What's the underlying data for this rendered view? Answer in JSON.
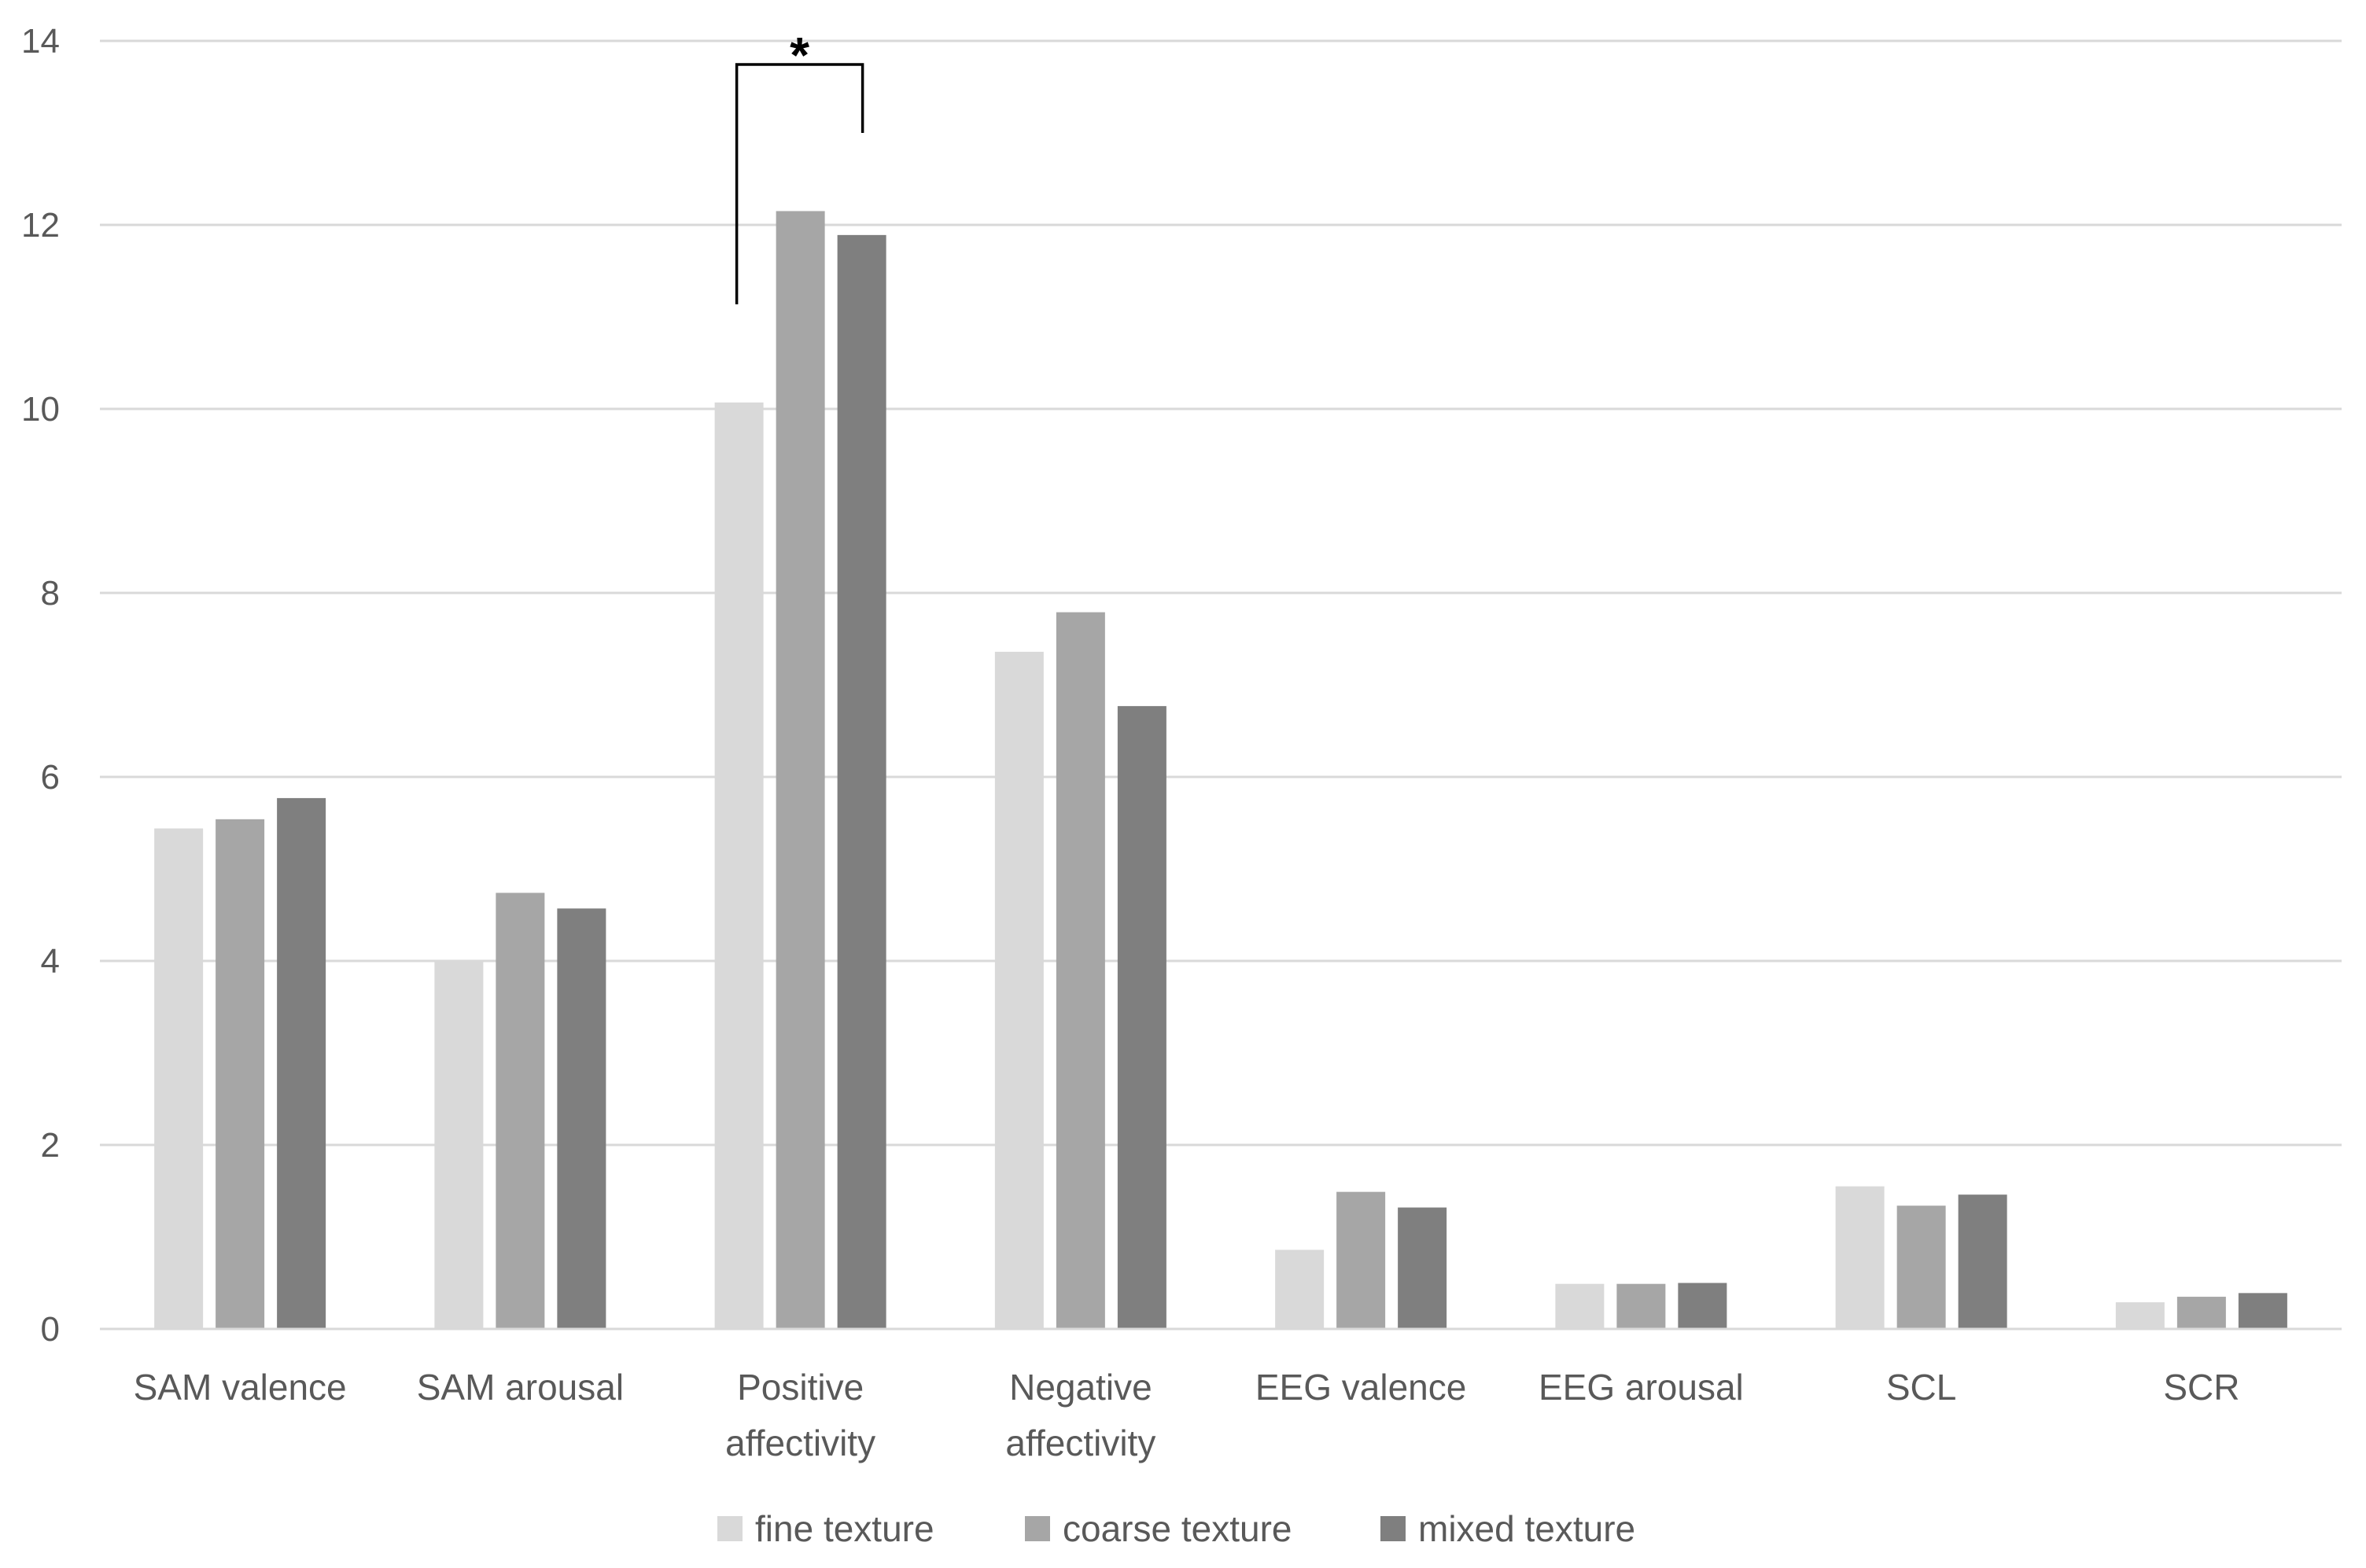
{
  "chart_data": {
    "type": "bar",
    "title": "",
    "xlabel": "",
    "ylabel": "",
    "ylim": [
      0,
      14
    ],
    "yticks": [
      0,
      2,
      4,
      6,
      8,
      10,
      12,
      14
    ],
    "grid": true,
    "legend_position": "bottom",
    "categories": [
      [
        "SAM valence"
      ],
      [
        "SAM arousal"
      ],
      [
        "Positive",
        "affectivity"
      ],
      [
        "Negative",
        "affectivity"
      ],
      [
        "EEG valence"
      ],
      [
        "EEG arousal"
      ],
      [
        "SCL"
      ],
      [
        "SCR"
      ]
    ],
    "series": [
      {
        "name": "fine texture",
        "color": "#d9d9d9",
        "values": [
          5.44,
          4.0,
          10.07,
          7.36,
          0.86,
          0.49,
          1.55,
          0.29
        ]
      },
      {
        "name": "coarse texture",
        "color": "#a6a6a6",
        "values": [
          5.54,
          4.74,
          12.15,
          7.79,
          1.49,
          0.49,
          1.34,
          0.35
        ]
      },
      {
        "name": "mixed texture",
        "color": "#7f7f7f",
        "values": [
          5.77,
          4.57,
          11.89,
          6.77,
          1.32,
          0.5,
          1.46,
          0.39
        ]
      }
    ],
    "annotations": [
      {
        "text": "*",
        "type": "significance-bracket",
        "category": "Positive affectivity",
        "between": [
          "fine texture",
          "mixed texture"
        ]
      }
    ]
  }
}
